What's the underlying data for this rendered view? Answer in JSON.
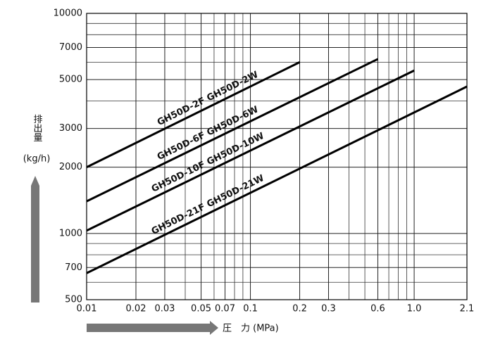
{
  "chart_data": {
    "type": "line",
    "log_x": true,
    "log_y": true,
    "grid": true,
    "y_title": "排出量",
    "y_unit": "(kg/h)",
    "x_title": "圧　力 (MPa)",
    "xlim": [
      0.01,
      2.1
    ],
    "ylim": [
      500,
      10000
    ],
    "xticks": [
      0.01,
      0.02,
      0.03,
      0.05,
      0.07,
      0.1,
      0.2,
      0.3,
      0.6,
      {
        "value": 1,
        "label": "1.0"
      },
      2.1
    ],
    "xgrid": [
      0.04,
      0.06,
      0.08,
      0.09,
      0.4,
      0.5,
      0.7,
      0.8,
      0.9
    ],
    "yticks": [
      500,
      700,
      1000,
      2000,
      3000,
      5000,
      7000,
      10000
    ],
    "ygrid": [
      600,
      800,
      900,
      4000,
      6000,
      8000,
      9000
    ],
    "series": [
      {
        "name": "GH50D-2F  GH50D-2W",
        "color": "#000000",
        "x": [
          0.01,
          0.2
        ],
        "values": [
          2000,
          6000
        ]
      },
      {
        "name": "GH50D-6F  GH50D-6W",
        "color": "#000000",
        "x": [
          0.01,
          0.6
        ],
        "values": [
          1400,
          6200
        ]
      },
      {
        "name": "GH50D-10F  GH50D-10W",
        "color": "#000000",
        "x": [
          0.01,
          1
        ],
        "values": [
          1030,
          5500
        ]
      },
      {
        "name": "GH50D-21F  GH50D-21W",
        "color": "#000000",
        "x": [
          0.01,
          2.1
        ],
        "values": [
          660,
          4650
        ]
      }
    ]
  }
}
